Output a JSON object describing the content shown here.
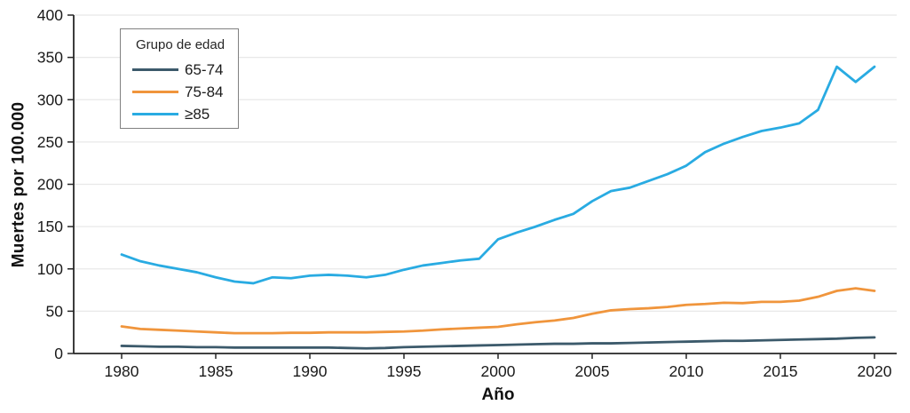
{
  "chart_data": {
    "type": "line",
    "title": "",
    "xlabel": "Año",
    "ylabel": "Muertes por 100.000",
    "legend_title": "Grupo de edad",
    "legend_position": "top-left",
    "grid": "horizontal",
    "ylim": [
      0,
      400
    ],
    "ytick_step": 50,
    "xticks": [
      1980,
      1985,
      1990,
      1995,
      2000,
      2005,
      2010,
      2015,
      2020
    ],
    "x": [
      1980,
      1981,
      1982,
      1983,
      1984,
      1985,
      1986,
      1987,
      1988,
      1989,
      1990,
      1991,
      1992,
      1993,
      1994,
      1995,
      1996,
      1997,
      1998,
      1999,
      2000,
      2001,
      2002,
      2003,
      2004,
      2005,
      2006,
      2007,
      2008,
      2009,
      2010,
      2011,
      2012,
      2013,
      2014,
      2015,
      2016,
      2017,
      2018,
      2019,
      2020
    ],
    "series": [
      {
        "name": "65-74",
        "color": "#3C5A6B",
        "values": [
          9,
          8.5,
          8,
          8,
          7.5,
          7.5,
          7,
          7,
          7,
          7,
          7,
          7,
          6.5,
          6,
          6.5,
          7.5,
          8,
          8.5,
          9,
          9.5,
          10,
          10.5,
          11,
          11.5,
          11.5,
          12,
          12,
          12.5,
          13,
          13.5,
          14,
          14.5,
          15,
          15,
          15.5,
          16,
          16.5,
          17,
          17.5,
          18.5,
          19
        ]
      },
      {
        "name": "75-84",
        "color": "#F0953C",
        "values": [
          32,
          29,
          28,
          27,
          26,
          25,
          24,
          24,
          24,
          24.5,
          24.5,
          25,
          25,
          25,
          25.5,
          26,
          27,
          28.5,
          29.5,
          30.5,
          31.5,
          34.5,
          37,
          39,
          42,
          47,
          51,
          52.5,
          53.5,
          55,
          57.5,
          58.5,
          60,
          59.5,
          61,
          61,
          62.5,
          67,
          74,
          77,
          74
        ]
      },
      {
        "name": "≥85",
        "color": "#29ABE2",
        "values": [
          117,
          109,
          104,
          100,
          96,
          90,
          85,
          83,
          90,
          89,
          92,
          93,
          92,
          90,
          93,
          99,
          104,
          107,
          110,
          112,
          135,
          143,
          150,
          158,
          165,
          180,
          192,
          196,
          204,
          212,
          222,
          238,
          248,
          256,
          263,
          267,
          272,
          288,
          339,
          321,
          339
        ]
      }
    ],
    "colors": {
      "grid": "#E8E8E8",
      "axis": "#262626",
      "tick_text": "#1A1A1A"
    }
  }
}
